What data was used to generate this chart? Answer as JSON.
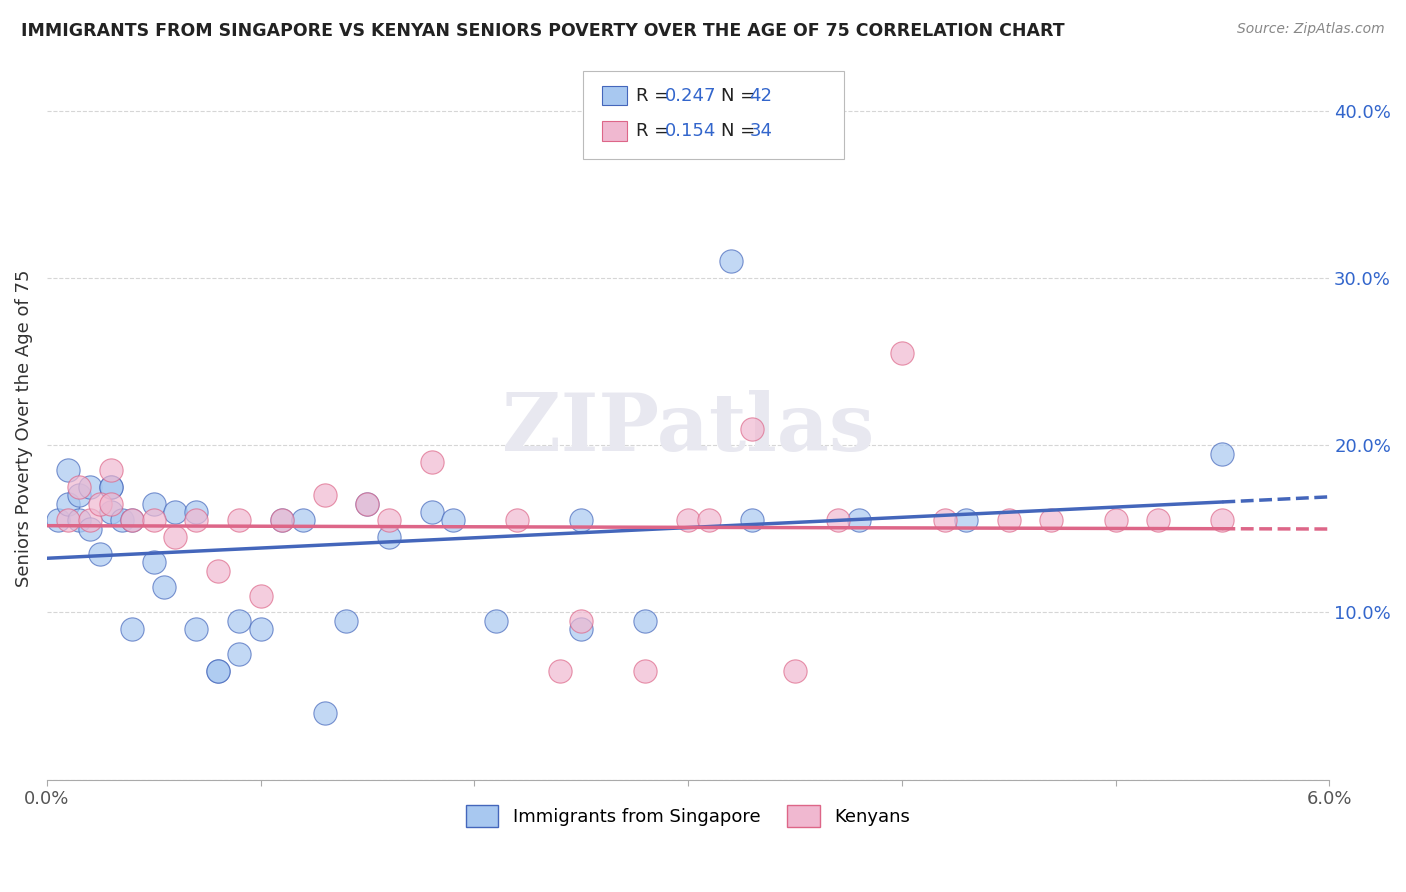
{
  "title": "IMMIGRANTS FROM SINGAPORE VS KENYAN SENIORS POVERTY OVER THE AGE OF 75 CORRELATION CHART",
  "source": "Source: ZipAtlas.com",
  "ylabel": "Seniors Poverty Over the Age of 75",
  "xlim": [
    0.0,
    0.06
  ],
  "ylim": [
    0.0,
    0.42
  ],
  "xticks": [
    0.0,
    0.01,
    0.02,
    0.03,
    0.04,
    0.05,
    0.06
  ],
  "yticks": [
    0.0,
    0.1,
    0.2,
    0.3,
    0.4
  ],
  "ytick_labels": [
    "",
    "10.0%",
    "20.0%",
    "30.0%",
    "40.0%"
  ],
  "xtick_labels": [
    "0.0%",
    "",
    "",
    "",
    "",
    "",
    "6.0%"
  ],
  "legend_R1": "R = 0.247",
  "legend_N1": "N = 42",
  "legend_R2": "R = 0.154",
  "legend_N2": "N = 34",
  "color_singapore": "#a8c8f0",
  "color_kenya": "#f0b8d0",
  "color_singapore_line": "#4466bb",
  "color_kenya_line": "#dd6688",
  "legend_text_color": "#3366cc",
  "legend_label_color": "#333333",
  "watermark_color": "#e8e8f0",
  "background": "#ffffff",
  "singapore_x": [
    0.0005,
    0.001,
    0.001,
    0.0015,
    0.0015,
    0.002,
    0.002,
    0.0025,
    0.003,
    0.003,
    0.003,
    0.0035,
    0.004,
    0.004,
    0.005,
    0.005,
    0.0055,
    0.006,
    0.007,
    0.007,
    0.008,
    0.008,
    0.009,
    0.009,
    0.01,
    0.011,
    0.012,
    0.013,
    0.014,
    0.015,
    0.016,
    0.018,
    0.019,
    0.021,
    0.025,
    0.025,
    0.028,
    0.032,
    0.033,
    0.038,
    0.043,
    0.055
  ],
  "singapore_y": [
    0.155,
    0.165,
    0.185,
    0.17,
    0.155,
    0.15,
    0.175,
    0.135,
    0.16,
    0.175,
    0.175,
    0.155,
    0.155,
    0.09,
    0.165,
    0.13,
    0.115,
    0.16,
    0.16,
    0.09,
    0.065,
    0.065,
    0.075,
    0.095,
    0.09,
    0.155,
    0.155,
    0.04,
    0.095,
    0.165,
    0.145,
    0.16,
    0.155,
    0.095,
    0.155,
    0.09,
    0.095,
    0.31,
    0.155,
    0.155,
    0.155,
    0.195
  ],
  "kenya_x": [
    0.001,
    0.0015,
    0.002,
    0.0025,
    0.003,
    0.003,
    0.004,
    0.005,
    0.006,
    0.007,
    0.008,
    0.009,
    0.01,
    0.011,
    0.013,
    0.015,
    0.016,
    0.018,
    0.022,
    0.024,
    0.025,
    0.028,
    0.03,
    0.031,
    0.033,
    0.035,
    0.037,
    0.04,
    0.042,
    0.045,
    0.047,
    0.05,
    0.052,
    0.055
  ],
  "kenya_y": [
    0.155,
    0.175,
    0.155,
    0.165,
    0.185,
    0.165,
    0.155,
    0.155,
    0.145,
    0.155,
    0.125,
    0.155,
    0.11,
    0.155,
    0.17,
    0.165,
    0.155,
    0.19,
    0.155,
    0.065,
    0.095,
    0.065,
    0.155,
    0.155,
    0.21,
    0.065,
    0.155,
    0.255,
    0.155,
    0.155,
    0.155,
    0.155,
    0.155,
    0.155
  ]
}
